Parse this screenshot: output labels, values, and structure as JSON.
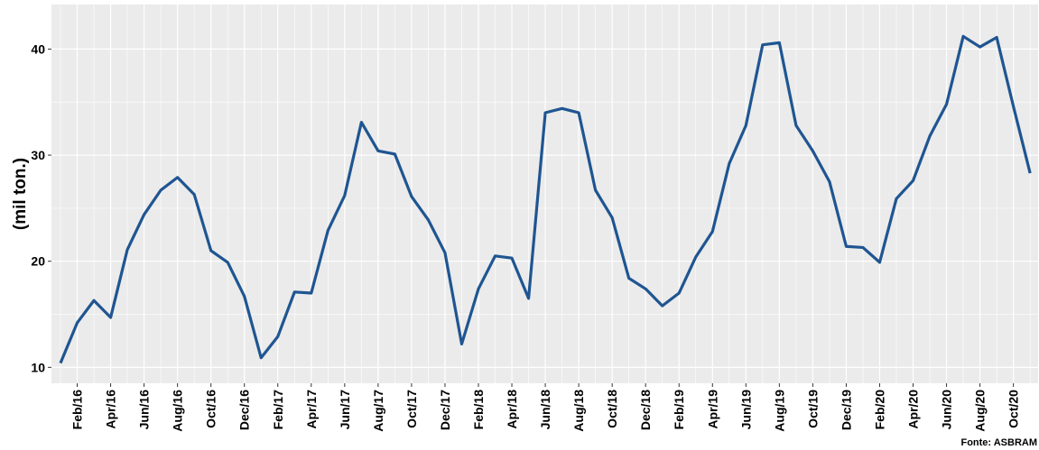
{
  "chart_data": {
    "type": "line",
    "y_label": "(mil ton.)",
    "source": "Fonte: ASBRAM",
    "categories": [
      null,
      "Feb/16",
      null,
      "Apr/16",
      null,
      "Jun/16",
      null,
      "Aug/16",
      null,
      "Oct/16",
      null,
      "Dec/16",
      null,
      "Feb/17",
      null,
      "Apr/17",
      null,
      "Jun/17",
      null,
      "Aug/17",
      null,
      "Oct/17",
      null,
      "Dec/17",
      null,
      "Feb/18",
      null,
      "Apr/18",
      null,
      "Jun/18",
      null,
      "Aug/18",
      null,
      "Oct/18",
      null,
      "Dec/18",
      null,
      "Feb/19",
      null,
      "Apr/19",
      null,
      "Jun/19",
      null,
      "Aug/19",
      null,
      "Oct/19",
      null,
      "Dec/19",
      null,
      "Feb/20",
      null,
      "Apr/20",
      null,
      "Jun/20",
      null,
      "Aug/20",
      null,
      "Oct/20",
      null
    ],
    "series": [
      {
        "color": "#1f5591",
        "values": [
          10.4,
          14.2,
          16.3,
          14.7,
          21.1,
          24.4,
          26.7,
          27.9,
          26.3,
          21.0,
          19.9,
          16.7,
          10.9,
          12.9,
          17.1,
          17.0,
          22.9,
          26.2,
          33.1,
          30.4,
          30.1,
          26.1,
          23.9,
          20.8,
          12.2,
          17.4,
          20.5,
          20.3,
          16.5,
          34.0,
          34.4,
          34.0,
          26.7,
          24.1,
          18.4,
          17.4,
          15.8,
          17.0,
          20.4,
          22.8,
          29.2,
          32.8,
          40.4,
          40.6,
          32.8,
          30.4,
          27.5,
          21.4,
          21.3,
          19.9,
          25.9,
          27.6,
          31.8,
          34.8,
          41.2,
          40.2,
          41.1,
          34.6,
          28.3
        ]
      }
    ],
    "ylim": [
      8.5,
      44.2
    ],
    "yticks": [
      10,
      20,
      30,
      40
    ],
    "grid": true
  }
}
